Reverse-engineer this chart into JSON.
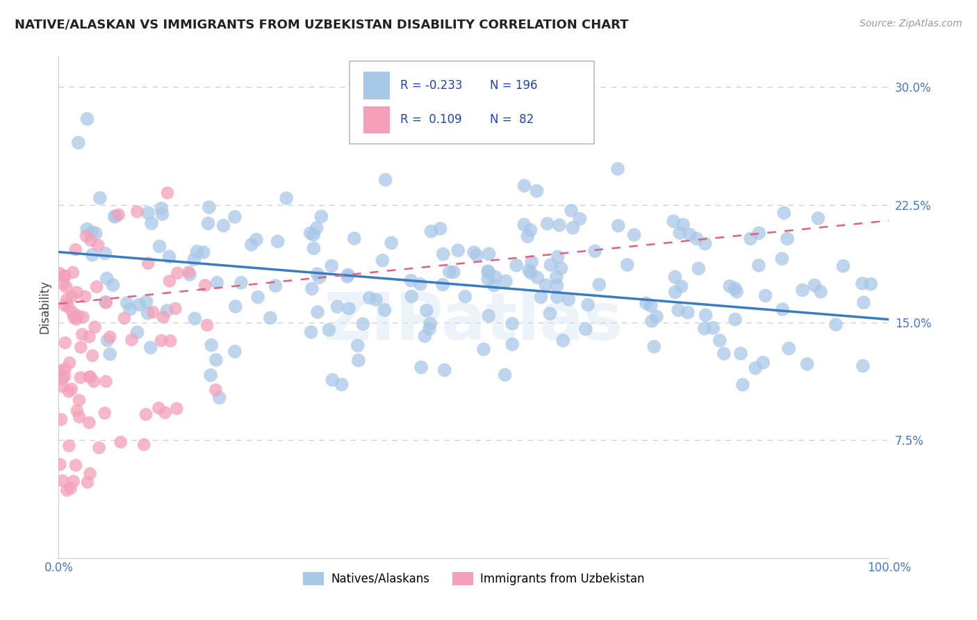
{
  "title": "NATIVE/ALASKAN VS IMMIGRANTS FROM UZBEKISTAN DISABILITY CORRELATION CHART",
  "source": "Source: ZipAtlas.com",
  "ylabel": "Disability",
  "xlim": [
    0,
    100
  ],
  "ylim": [
    0,
    32
  ],
  "yticks": [
    7.5,
    15.0,
    22.5,
    30.0
  ],
  "ytick_labels": [
    "7.5%",
    "15.0%",
    "22.5%",
    "30.0%"
  ],
  "blue_color": "#a8c8e8",
  "blue_line_color": "#3a7cc0",
  "pink_color": "#f4a0b8",
  "pink_line_color": "#e06080",
  "watermark": "ZIPatlas",
  "native_r": -0.233,
  "native_n": 196,
  "uzbek_r": 0.109,
  "uzbek_n": 82,
  "blue_y_at_x0": 19.5,
  "blue_y_at_x100": 15.2,
  "pink_y_at_x0": 16.2,
  "pink_y_at_x100": 21.5,
  "blue_x_mean": 50,
  "blue_y_mean": 17.5,
  "blue_y_std": 3.5,
  "pink_x_mean": 8,
  "pink_y_mean": 13.5,
  "pink_y_std": 4.5
}
